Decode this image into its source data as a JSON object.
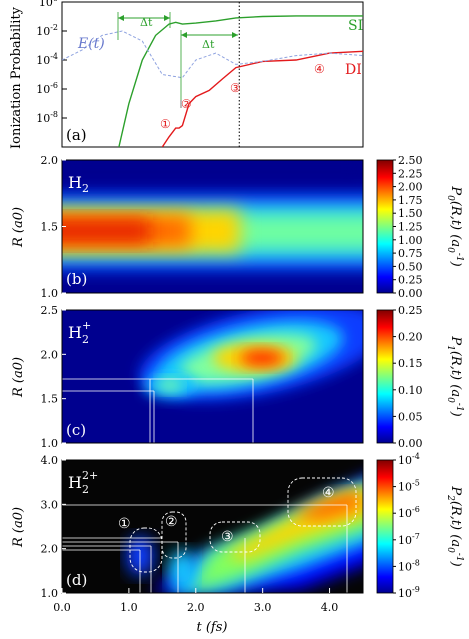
{
  "figure": {
    "xaxis_label": "t (fs)",
    "x_ticks": [
      "0.0",
      "1.0",
      "2.0",
      "3.0",
      "4.0"
    ],
    "x_range": [
      0,
      4.5
    ]
  },
  "chart_data": [
    {
      "panel": "(a)",
      "type": "line",
      "ylabel": "Ionization Probability",
      "yscale": "log",
      "ylim": [
        1e-10,
        1
      ],
      "y_ticks": [
        "10^0",
        "10^-2",
        "10^-4",
        "10^-6",
        "10^-8"
      ],
      "series": [
        {
          "name": "SI",
          "color": "#2ca02c",
          "x": [
            0.85,
            1.0,
            1.2,
            1.4,
            1.6,
            1.7,
            1.8,
            2.0,
            2.3,
            2.6,
            3.0,
            3.5,
            4.0,
            4.5
          ],
          "y": [
            1e-10,
            1e-07,
            0.0001,
            0.005,
            0.03,
            0.04,
            0.03,
            0.035,
            0.05,
            0.08,
            0.1,
            0.11,
            0.11,
            0.11
          ]
        },
        {
          "name": "DI",
          "color": "#e31a1c",
          "x": [
            1.5,
            1.6,
            1.7,
            1.75,
            1.8,
            1.9,
            2.0,
            2.2,
            2.4,
            2.6,
            3.0,
            3.5,
            4.0,
            4.5
          ],
          "y": [
            1e-10,
            5e-10,
            2e-09,
            2e-09,
            3e-09,
            1e-07,
            3e-07,
            8e-07,
            5e-06,
            3e-05,
            8e-05,
            0.0001,
            0.0003,
            0.0004
          ]
        },
        {
          "name": "E(t)",
          "color": "#8fa3e0",
          "dashed": true,
          "x": [
            0.0,
            0.3,
            0.6,
            0.9,
            1.2,
            1.5,
            1.8,
            2.0,
            2.3,
            2.6,
            3.0,
            3.5,
            4.0,
            4.5
          ],
          "y": [
            0.0001,
            0.0005,
            0.005,
            0.01,
            0.002,
            1e-05,
            6e-06,
            0.0001,
            0.0003,
            5e-05,
            8e-05,
            0.0002,
            0.0003,
            0.0002
          ]
        }
      ],
      "annotations": {
        "delta_t": "Δt",
        "markers": [
          "①",
          "②",
          "③",
          "④"
        ],
        "vertical_line_t": 2.65
      }
    },
    {
      "panel": "(b)",
      "type": "heatmap",
      "species": "H",
      "species_sub": "2",
      "species_sup": "",
      "ylabel": "R (a0)",
      "y_ticks": [
        "1.0",
        "1.5",
        "2.0"
      ],
      "ylim": [
        1.0,
        2.0
      ],
      "colorbar_label": "P0(R,t) (a0-1)",
      "colorbar_ticks": [
        "0.00",
        "0.25",
        "0.50",
        "0.75",
        "1.00",
        "1.25",
        "1.50",
        "1.75",
        "2.00",
        "2.25",
        "2.50"
      ],
      "colorbar_range": [
        0,
        2.5
      ]
    },
    {
      "panel": "(c)",
      "type": "heatmap",
      "species": "H",
      "species_sub": "2",
      "species_sup": "+",
      "ylabel": "R (a0)",
      "y_ticks": [
        "1.0",
        "1.5",
        "2.0",
        "2.5"
      ],
      "ylim": [
        1.0,
        2.5
      ],
      "colorbar_label": "P1(R,t) (a0-1)",
      "colorbar_ticks": [
        "0.00",
        "0.05",
        "0.10",
        "0.15",
        "0.20",
        "0.25"
      ],
      "colorbar_range": [
        0,
        0.25
      ]
    },
    {
      "panel": "(d)",
      "type": "heatmap",
      "species": "H",
      "species_sub": "2",
      "species_sup": "2+",
      "ylabel": "R (a0)",
      "y_ticks": [
        "1.0",
        "2.0",
        "3.0",
        "4.0"
      ],
      "ylim": [
        1.0,
        4.0
      ],
      "colorbar_label": "P2(R,t) (a0-1)",
      "colorbar_scale": "log",
      "colorbar_ticks": [
        "10-4",
        "10-5",
        "10-6",
        "10-7",
        "10-8",
        "10-9"
      ],
      "colorbar_range": [
        1e-09,
        0.0001
      ],
      "markers": [
        "①",
        "②",
        "③",
        "④"
      ]
    }
  ]
}
